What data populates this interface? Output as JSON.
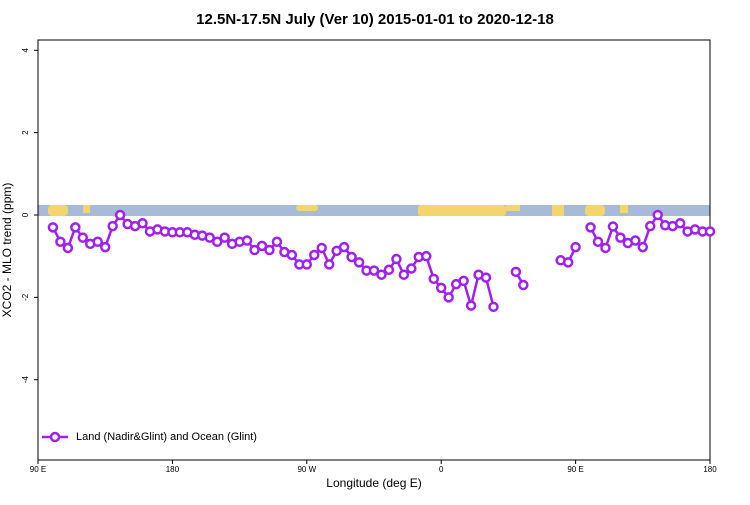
{
  "chart_data": {
    "type": "line",
    "title": "12.5N-17.5N July (Ver 10)   2015-01-01 to 2020-12-18",
    "x_label": "Longitude (deg E)",
    "y_label": "XCO2 - MLO trend (ppm)",
    "xlim": [
      90,
      540
    ],
    "ylim": [
      -5.95,
      4.25
    ],
    "xticks": [
      {
        "value": 90,
        "label": "90 E"
      },
      180,
      {
        "value": 270,
        "label": "90 W"
      },
      {
        "value": 360,
        "label": "0"
      },
      {
        "value": 450,
        "label": "90 E"
      },
      {
        "value": 540,
        "label": "180"
      }
    ],
    "yticks": [
      -4,
      -2,
      0,
      2,
      4
    ],
    "legend": "bottom-left",
    "x": [
      100,
      105,
      110,
      115,
      120,
      125,
      130,
      135,
      140,
      145,
      150,
      155,
      160,
      165,
      170,
      175,
      180,
      185,
      190,
      195,
      200,
      205,
      210,
      215,
      220,
      225,
      230,
      235,
      240,
      245,
      250,
      255,
      260,
      265,
      270,
      275,
      280,
      285,
      290,
      295,
      300,
      305,
      310,
      315,
      320,
      325,
      330,
      335,
      340,
      345,
      350,
      355,
      360,
      365,
      370,
      375,
      380,
      385,
      390,
      395,
      400,
      405,
      410,
      415,
      420,
      425,
      430,
      435,
      440,
      445,
      450,
      455,
      460,
      465,
      470,
      475,
      480,
      485,
      490,
      495,
      500,
      505,
      510,
      515,
      520,
      525,
      530,
      535,
      540
    ],
    "series": [
      {
        "name": "Land (Nadir&Glint) and Ocean (Glint)",
        "color": "#a020f0",
        "values": [
          -0.3,
          -0.65,
          -0.8,
          -0.3,
          -0.55,
          -0.7,
          -0.65,
          -0.78,
          -0.27,
          0.0,
          -0.22,
          -0.27,
          -0.2,
          -0.4,
          -0.35,
          -0.4,
          -0.42,
          -0.42,
          -0.42,
          -0.48,
          -0.5,
          -0.55,
          -0.65,
          -0.55,
          -0.7,
          -0.65,
          -0.62,
          -0.85,
          -0.75,
          -0.85,
          -0.65,
          -0.9,
          -0.97,
          -1.2,
          -1.2,
          -0.97,
          -0.8,
          -1.2,
          -0.87,
          -0.78,
          -1.02,
          -1.15,
          -1.35,
          -1.35,
          -1.45,
          -1.33,
          -1.07,
          -1.45,
          -1.3,
          -1.02,
          -1.0,
          -1.55,
          -1.77,
          -2.0,
          -1.68,
          -1.6,
          -2.2,
          -1.45,
          -1.52,
          -2.23,
          null,
          null,
          -1.38,
          -1.7,
          null,
          null,
          null,
          null,
          -1.1,
          -1.15,
          -0.78,
          null,
          -0.3,
          -0.65,
          -0.8,
          -0.28,
          -0.55,
          -0.68,
          -0.62,
          -0.78,
          -0.27,
          0.0,
          -0.25,
          -0.27,
          -0.2,
          -0.4,
          -0.35,
          -0.4,
          -0.4
        ]
      }
    ]
  }
}
